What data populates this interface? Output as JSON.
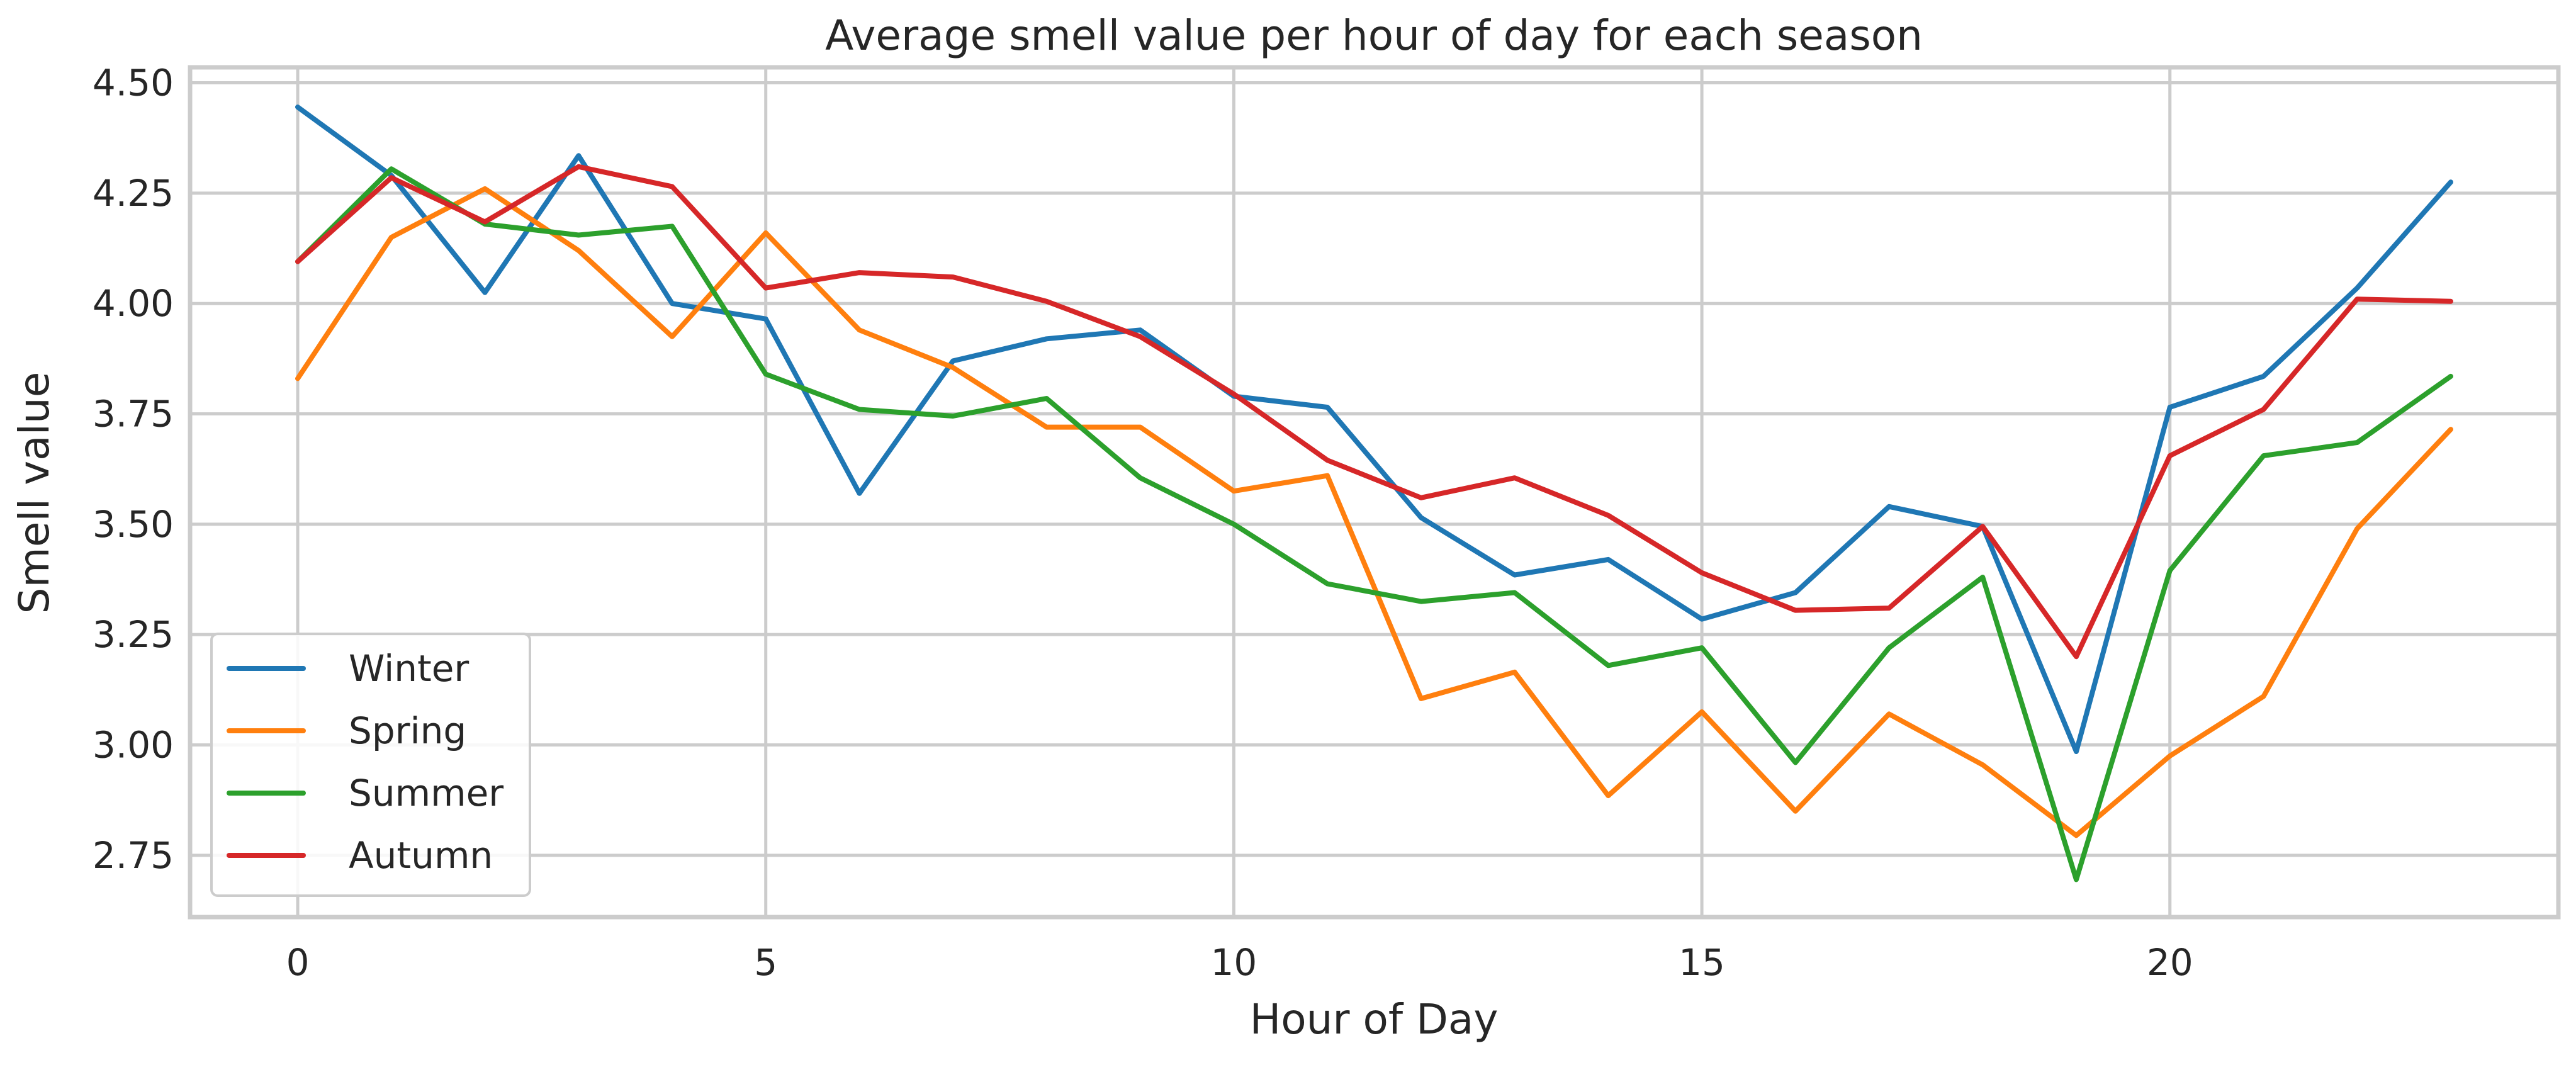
{
  "chart_data": {
    "type": "line",
    "title": "Average smell value per hour of day for each season",
    "xlabel": "Hour of Day",
    "ylabel": "Smell value",
    "x": [
      0,
      1,
      2,
      3,
      4,
      5,
      6,
      7,
      8,
      9,
      10,
      11,
      12,
      13,
      14,
      15,
      16,
      17,
      18,
      19,
      20,
      21,
      22,
      23
    ],
    "xlim": [
      -1.15,
      24.15
    ],
    "ylim": [
      2.61,
      4.535
    ],
    "xticks": [
      0,
      5,
      10,
      15,
      20
    ],
    "yticks": [
      2.75,
      3.0,
      3.25,
      3.5,
      3.75,
      4.0,
      4.25,
      4.5
    ],
    "xtick_labels": [
      "0",
      "5",
      "10",
      "15",
      "20"
    ],
    "ytick_labels": [
      "2.75",
      "3.00",
      "3.25",
      "3.50",
      "3.75",
      "4.00",
      "4.25",
      "4.50"
    ],
    "grid": true,
    "legend_position": "lower-left",
    "series": [
      {
        "name": "Winter",
        "color": "#1f77b4",
        "values": [
          4.445,
          4.29,
          4.025,
          4.335,
          4.0,
          3.965,
          3.57,
          3.87,
          3.92,
          3.94,
          3.79,
          3.765,
          3.515,
          3.385,
          3.42,
          3.285,
          3.345,
          3.54,
          3.495,
          2.985,
          3.765,
          3.835,
          4.035,
          4.275
        ]
      },
      {
        "name": "Spring",
        "color": "#ff7f0e",
        "values": [
          3.83,
          4.15,
          4.26,
          4.12,
          3.925,
          4.16,
          3.94,
          3.855,
          3.72,
          3.72,
          3.575,
          3.61,
          3.105,
          3.165,
          2.885,
          3.075,
          2.85,
          3.07,
          2.955,
          2.795,
          2.975,
          3.11,
          3.49,
          3.715
        ]
      },
      {
        "name": "Summer",
        "color": "#2ca02c",
        "values": [
          4.095,
          4.305,
          4.18,
          4.155,
          4.175,
          3.84,
          3.76,
          3.745,
          3.785,
          3.605,
          3.5,
          3.365,
          3.325,
          3.345,
          3.18,
          3.22,
          2.96,
          3.22,
          3.38,
          2.695,
          3.395,
          3.655,
          3.685,
          3.835
        ]
      },
      {
        "name": "Autumn",
        "color": "#d62728",
        "values": [
          4.095,
          4.285,
          4.185,
          4.31,
          4.265,
          4.035,
          4.07,
          4.06,
          4.005,
          3.925,
          3.795,
          3.645,
          3.56,
          3.605,
          3.52,
          3.39,
          3.305,
          3.31,
          3.495,
          3.2,
          3.655,
          3.76,
          4.01,
          4.005
        ]
      }
    ]
  }
}
